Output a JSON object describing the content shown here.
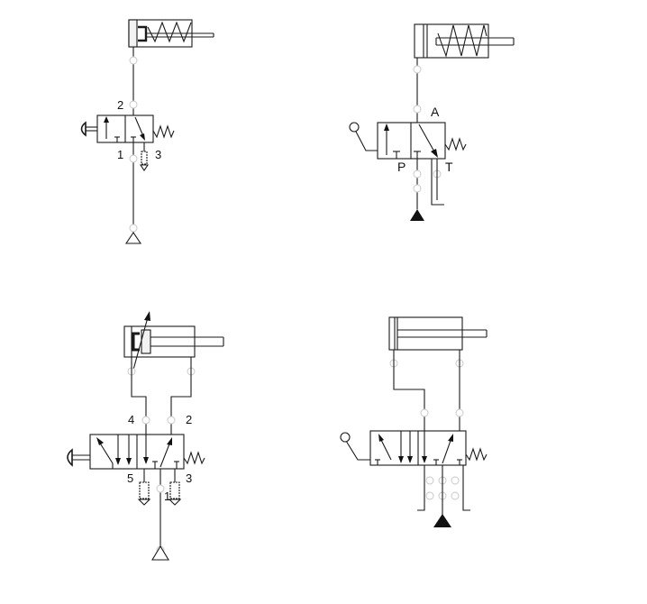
{
  "diagrams": {
    "d1": {
      "port_2": "2",
      "port_1": "1",
      "port_3": "3"
    },
    "d2": {
      "port_a": "A",
      "port_p": "P",
      "port_t": "T"
    },
    "d3": {
      "port_4": "4",
      "port_2": "2",
      "port_5": "5",
      "port_1": "1",
      "port_3": "3"
    },
    "d4": {}
  }
}
